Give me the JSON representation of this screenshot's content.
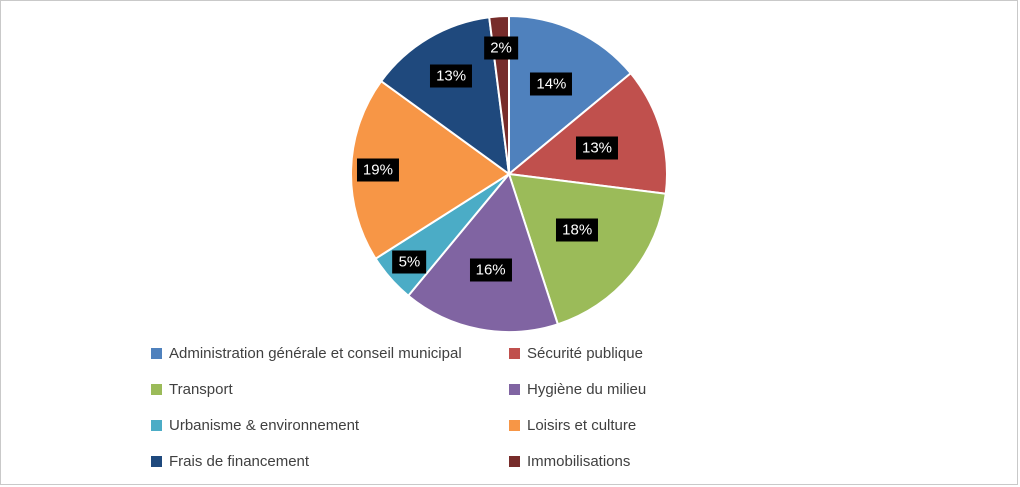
{
  "chart_data": {
    "type": "pie",
    "title": "",
    "legend_position": "bottom",
    "direction": "clockwise",
    "start_angle_deg": 0,
    "label_style": {
      "background": "#000000",
      "text_color": "#ffffff"
    },
    "slices": [
      {
        "label": "Administration générale et conseil municipal",
        "value": 14,
        "percent_label": "14%",
        "color": "#4F81BD"
      },
      {
        "label": "Sécurité publique",
        "value": 13,
        "percent_label": "13%",
        "color": "#C0504D"
      },
      {
        "label": "Transport",
        "value": 18,
        "percent_label": "18%",
        "color": "#9BBB59"
      },
      {
        "label": "Hygiène du milieu",
        "value": 16,
        "percent_label": "16%",
        "color": "#8064A2"
      },
      {
        "label": "Urbanisme & environnement",
        "value": 5,
        "percent_label": "5%",
        "color": "#4BACC6"
      },
      {
        "label": "Loisirs et culture",
        "value": 19,
        "percent_label": "19%",
        "color": "#F79646"
      },
      {
        "label": "Frais de financement",
        "value": 13,
        "percent_label": "13%",
        "color": "#1F497D"
      },
      {
        "label": "Immobilisations",
        "value": 2,
        "percent_label": "2%",
        "color": "#772C2A"
      }
    ]
  }
}
